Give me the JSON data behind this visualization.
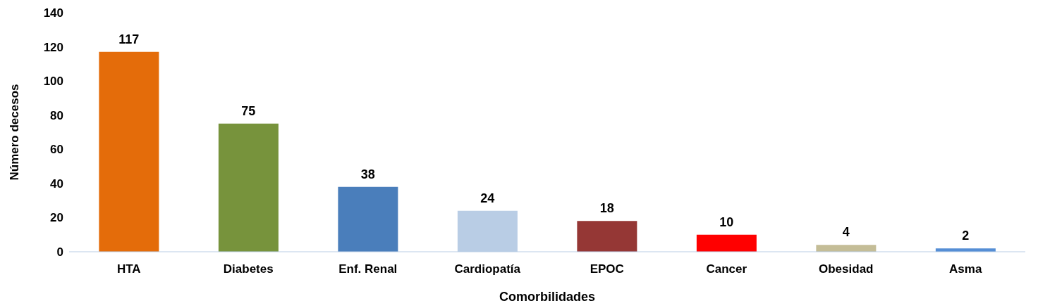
{
  "chart_data": {
    "type": "bar",
    "xlabel": "Comorbilidades",
    "ylabel": "Número decesos",
    "categories": [
      "HTA",
      "Diabetes",
      "Enf. Renal",
      "Cardiopatía",
      "EPOC",
      "Cancer",
      "Obesidad",
      "Asma"
    ],
    "values": [
      117,
      75,
      38,
      24,
      18,
      10,
      4,
      2
    ],
    "colors": [
      "#e46c0a",
      "#77933c",
      "#4a7ebb",
      "#b9cde5",
      "#953735",
      "#ff0000",
      "#c4bd97",
      "#558ed5"
    ],
    "ylim": [
      0,
      140
    ],
    "yticks": [
      0,
      20,
      40,
      60,
      80,
      100,
      120,
      140
    ],
    "grid": false,
    "legend": false,
    "data_labels": true
  }
}
